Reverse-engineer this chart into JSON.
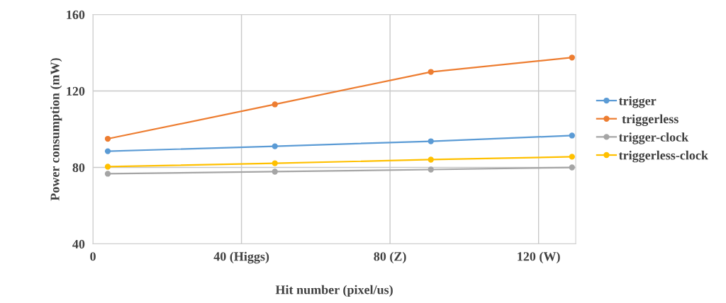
{
  "chart_data": {
    "type": "line",
    "xlabel": "Hit number (pixel/us)",
    "ylabel": "Power consumption (mW)",
    "x": [
      4,
      49,
      91,
      129
    ],
    "series": [
      {
        "name": "trigger",
        "color": "#5b9bd5",
        "values": [
          88.5,
          91.1,
          93.7,
          96.7
        ]
      },
      {
        "name": " triggerless",
        "color": "#ed7d31",
        "values": [
          95,
          113,
          130,
          137.5
        ]
      },
      {
        "name": "trigger-clock",
        "color": "#a5a5a5",
        "values": [
          76.7,
          77.8,
          78.9,
          80
        ]
      },
      {
        "name": "triggerless-clock",
        "color": "#ffc000",
        "values": [
          80.4,
          82.2,
          84.1,
          85.6
        ]
      }
    ],
    "xlim": [
      0,
      130
    ],
    "xticks": [
      0,
      {
        "value": 40,
        "label": "40 (Higgs)"
      },
      {
        "value": 80,
        "label": "80 (Z)"
      },
      {
        "value": 120,
        "label": "120 (W)"
      }
    ],
    "ylim": [
      40,
      160
    ],
    "yticks": [
      40,
      80,
      120,
      160
    ],
    "grid": true,
    "legend": "right",
    "marker": "circle",
    "line_style": "solid"
  }
}
